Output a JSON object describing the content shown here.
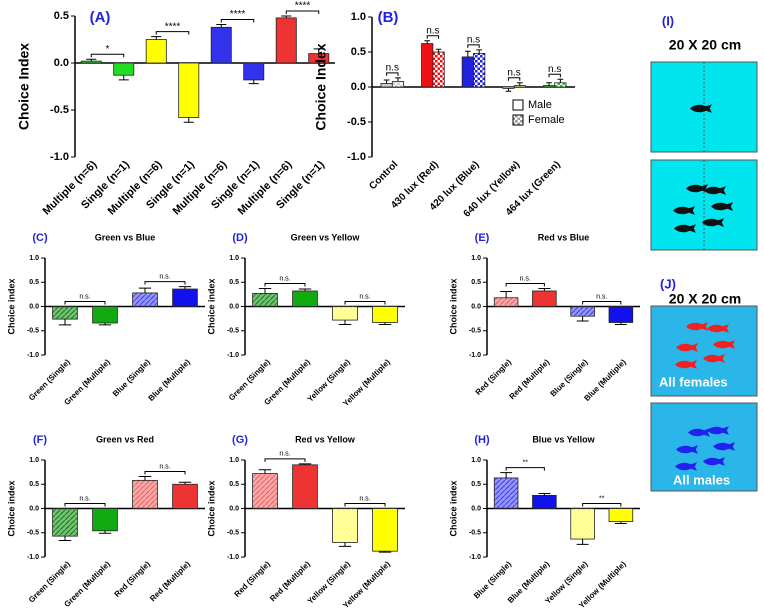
{
  "chart_data": [
    {
      "type": "bar",
      "panel": "(A)",
      "y_label": "Choice Index",
      "categories": [
        "Multiple (n=6)",
        "Single (n=1)",
        "Multiple (n=6)",
        "Single (n=1)",
        "Multiple (n=6)",
        "Single (n=1)",
        "Multiple (n=6)",
        "Single (n=1)"
      ],
      "values": [
        0.02,
        -0.13,
        0.25,
        -0.58,
        0.38,
        -0.18,
        0.48,
        0.1
      ],
      "errors": [
        0.02,
        0.05,
        0.03,
        0.05,
        0.03,
        0.04,
        0.02,
        0.05
      ],
      "colors": [
        "#22dd22",
        "#22dd22",
        "#ffff00",
        "#ffff00",
        "#3333ee",
        "#3333ee",
        "#ee3333",
        "#ee3333"
      ],
      "annotations": [
        "*",
        "****",
        "****",
        "****"
      ],
      "ylim": [
        -1,
        0.5
      ],
      "yticks": [
        {
          "value": -1,
          "label": "-1.0"
        },
        {
          "value": -0.5,
          "label": "-0.5"
        },
        {
          "value": 0,
          "label": "0.0"
        },
        {
          "value": 0.5,
          "label": "0.5"
        }
      ]
    },
    {
      "type": "grouped-bar",
      "panel": "(B)",
      "y_label": "Choice Index",
      "categories": [
        "Control",
        "430 lux (Red)",
        "420 lux (Blue)",
        "640 lux (Yellow)",
        "464 lux (Green)"
      ],
      "colors": [
        "#cccccc",
        "#ee1111",
        "#2222dd",
        "#ffff00",
        "#22cc22"
      ],
      "series": [
        {
          "name": "Male",
          "color": "#ffffff",
          "values": [
            0.05,
            0.62,
            0.43,
            -0.02,
            0.02
          ],
          "errors": [
            0.05,
            0.04,
            0.08,
            0.04,
            0.04
          ]
        },
        {
          "name": "Female",
          "color": "#999999",
          "values": [
            0.08,
            0.5,
            0.48,
            0.02,
            0.06
          ],
          "errors": [
            0.05,
            0.04,
            0.05,
            0.04,
            0.05
          ]
        }
      ],
      "annotations": [
        "n.s",
        "n.s",
        "n.s",
        "n.s",
        "n.s"
      ],
      "legend": "lower right",
      "ylim": [
        -1,
        1
      ],
      "yticks": [
        {
          "value": -1,
          "label": "-1.0"
        },
        {
          "value": -0.5,
          "label": "-0.5"
        },
        {
          "value": 0,
          "label": "0.0"
        },
        {
          "value": 0.5,
          "label": "0.5"
        },
        {
          "value": 1,
          "label": "1.0"
        }
      ]
    },
    {
      "type": "bar",
      "panel": "(C)",
      "title": "Green vs Blue",
      "y_label": "Choice index",
      "categories": [
        "Green (Single)",
        "Green (Multiple)",
        "Blue (Single)",
        "Blue (Multiple)"
      ],
      "values": [
        -0.26,
        -0.34,
        0.28,
        0.36
      ],
      "errors": [
        0.12,
        0.04,
        0.1,
        0.05
      ],
      "colors": [
        "#118811",
        "#11aa11",
        "#4444ee",
        "#1111ee"
      ],
      "hatch": [
        true,
        false,
        true,
        false
      ],
      "annotations": [
        "n.s.",
        "n.s."
      ],
      "ylim": [
        -1,
        1
      ],
      "yticks": [
        {
          "value": -1,
          "label": "-1.0"
        },
        {
          "value": -0.5,
          "label": "-0.5"
        },
        {
          "value": 0,
          "label": "0.0"
        },
        {
          "value": 0.5,
          "label": "0.5"
        },
        {
          "value": 1,
          "label": "1.0"
        }
      ]
    },
    {
      "type": "bar",
      "panel": "(D)",
      "title": "Green vs Yellow",
      "y_label": "Choice index",
      "categories": [
        "Green (Single)",
        "Green (Multiple)",
        "Yellow (Single)",
        "Yellow (Multiple)"
      ],
      "values": [
        0.27,
        0.32,
        -0.28,
        -0.33
      ],
      "errors": [
        0.1,
        0.04,
        0.09,
        0.04
      ],
      "colors": [
        "#118811",
        "#11aa11",
        "#ffff66",
        "#ffff00"
      ],
      "hatch": [
        true,
        false,
        true,
        false
      ],
      "annotations": [
        "n.s.",
        "n.s."
      ],
      "ylim": [
        -1,
        1
      ],
      "yticks": [
        {
          "value": -1,
          "label": "-1.0"
        },
        {
          "value": -0.5,
          "label": "-0.5"
        },
        {
          "value": 0,
          "label": "0.0"
        },
        {
          "value": 0.5,
          "label": "0.5"
        },
        {
          "value": 1,
          "label": "1.0"
        }
      ]
    },
    {
      "type": "bar",
      "panel": "(E)",
      "title": "Red vs Blue",
      "y_label": "Choice index",
      "categories": [
        "Red (Single)",
        "Red (Multiple)",
        "Blue (Single)",
        "Blue (Multiple)"
      ],
      "values": [
        0.18,
        0.32,
        -0.2,
        -0.33
      ],
      "errors": [
        0.13,
        0.05,
        0.1,
        0.04
      ],
      "colors": [
        "#ee6666",
        "#ee3333",
        "#4444ee",
        "#1111ee"
      ],
      "hatch": [
        true,
        false,
        true,
        false
      ],
      "annotations": [
        "n.s.",
        "n.s."
      ],
      "ylim": [
        -1,
        1
      ],
      "yticks": [
        {
          "value": -1,
          "label": "-1.0"
        },
        {
          "value": -0.5,
          "label": "-0.5"
        },
        {
          "value": 0,
          "label": "0.0"
        },
        {
          "value": 0.5,
          "label": "0.5"
        },
        {
          "value": 1,
          "label": "1.0"
        }
      ]
    },
    {
      "type": "bar",
      "panel": "(F)",
      "title": "Green vs Red",
      "y_label": "Choice index",
      "categories": [
        "Green (Single)",
        "Green (Multiple)",
        "Red (Single)",
        "Red (Multiple)"
      ],
      "values": [
        -0.57,
        -0.46,
        0.58,
        0.5
      ],
      "errors": [
        0.09,
        0.05,
        0.08,
        0.04
      ],
      "colors": [
        "#118811",
        "#11aa11",
        "#ee6666",
        "#ee3333"
      ],
      "hatch": [
        true,
        false,
        true,
        false
      ],
      "annotations": [
        "n.s.",
        "n.s."
      ],
      "ylim": [
        -1,
        1
      ],
      "yticks": [
        {
          "value": -1,
          "label": "-1.0"
        },
        {
          "value": -0.5,
          "label": "-0.5"
        },
        {
          "value": 0,
          "label": "0.0"
        },
        {
          "value": 0.5,
          "label": "0.5"
        },
        {
          "value": 1,
          "label": "1.0"
        }
      ]
    },
    {
      "type": "bar",
      "panel": "(G)",
      "title": "Red vs Yellow",
      "y_label": "Choice index",
      "categories": [
        "Red (Single)",
        "Red (Multiple)",
        "Yellow (Single)",
        "Yellow (Multiple)"
      ],
      "values": [
        0.72,
        0.9,
        -0.7,
        -0.88
      ],
      "errors": [
        0.08,
        0.02,
        0.08,
        0.02
      ],
      "colors": [
        "#ee6666",
        "#ee3333",
        "#ffff66",
        "#ffff00"
      ],
      "hatch": [
        true,
        false,
        true,
        false
      ],
      "annotations": [
        "n.s.",
        "n.s."
      ],
      "ylim": [
        -1,
        1
      ],
      "yticks": [
        {
          "value": -1,
          "label": "-1.0"
        },
        {
          "value": -0.5,
          "label": "-0.5"
        },
        {
          "value": 0,
          "label": "0.0"
        },
        {
          "value": 0.5,
          "label": "0.5"
        },
        {
          "value": 1,
          "label": "1.0"
        }
      ]
    },
    {
      "type": "bar",
      "panel": "(H)",
      "title": "Blue vs Yellow",
      "y_label": "Choice index",
      "categories": [
        "Blue (Single)",
        "Blue (Multiple)",
        "Yellow (Single)",
        "Yellow (Multiple)"
      ],
      "values": [
        0.63,
        0.27,
        -0.63,
        -0.27
      ],
      "errors": [
        0.11,
        0.04,
        0.11,
        0.04
      ],
      "colors": [
        "#4444ee",
        "#1111ee",
        "#ffff66",
        "#ffff00"
      ],
      "hatch": [
        true,
        false,
        true,
        false
      ],
      "annotations": [
        "**",
        "**"
      ],
      "ylim": [
        -1,
        1
      ],
      "yticks": [
        {
          "value": -1,
          "label": "-1.0"
        },
        {
          "value": -0.5,
          "label": "-0.5"
        },
        {
          "value": 0,
          "label": "0.0"
        },
        {
          "value": 0.5,
          "label": "0.5"
        },
        {
          "value": 1,
          "label": "1.0"
        }
      ]
    }
  ],
  "diagrams": [
    {
      "label": "(I)",
      "title": "20 X 20 cm"
    },
    {
      "label": "(J)",
      "title": "20 X 20 cm",
      "captions": [
        "All females",
        "All males"
      ]
    }
  ]
}
